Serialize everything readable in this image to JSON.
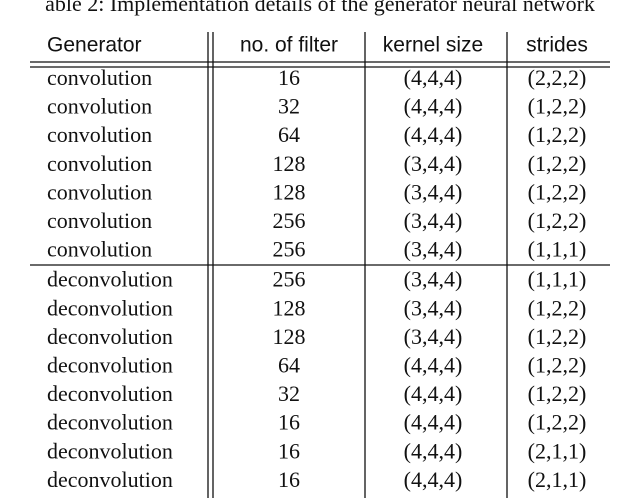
{
  "caption": "able 2: Implementation details of the generator neural network",
  "table": {
    "header": [
      "Generator",
      "no. of filter",
      "kernel size",
      "strides"
    ],
    "rows": [
      [
        "convolution",
        16,
        "(4,4,4)",
        "(2,2,2)"
      ],
      [
        "convolution",
        32,
        "(4,4,4)",
        "(1,2,2)"
      ],
      [
        "convolution",
        64,
        "(4,4,4)",
        "(1,2,2)"
      ],
      [
        "convolution",
        128,
        "(3,4,4)",
        "(1,2,2)"
      ],
      [
        "convolution",
        128,
        "(3,4,4)",
        "(1,2,2)"
      ],
      [
        "convolution",
        256,
        "(3,4,4)",
        "(1,2,2)"
      ],
      [
        "convolution",
        256,
        "(3,4,4)",
        "(1,1,1)"
      ],
      [
        "deconvolution",
        256,
        "(3,4,4)",
        "(1,1,1)"
      ],
      [
        "deconvolution",
        128,
        "(3,4,4)",
        "(1,2,2)"
      ],
      [
        "deconvolution",
        128,
        "(3,4,4)",
        "(1,2,2)"
      ],
      [
        "deconvolution",
        64,
        "(4,4,4)",
        "(1,2,2)"
      ],
      [
        "deconvolution",
        32,
        "(4,4,4)",
        "(1,2,2)"
      ],
      [
        "deconvolution",
        16,
        "(4,4,4)",
        "(1,2,2)"
      ],
      [
        "deconvolution",
        16,
        "(4,4,4)",
        "(2,1,1)"
      ],
      [
        "deconvolution",
        16,
        "(4,4,4)",
        "(2,1,1)"
      ]
    ]
  }
}
